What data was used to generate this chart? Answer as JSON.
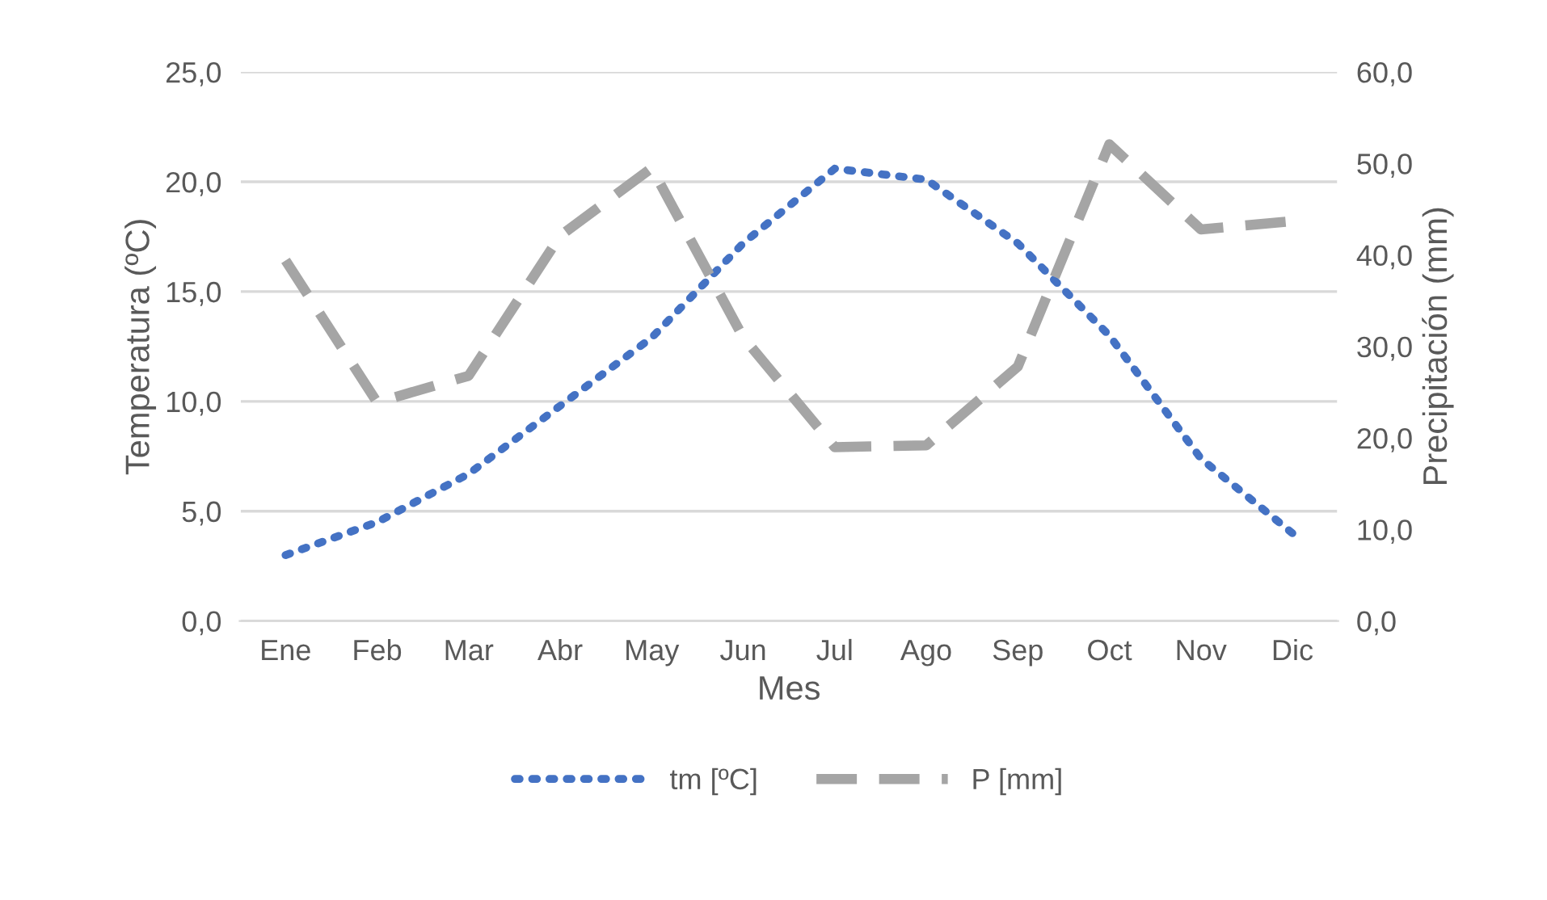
{
  "chart_data": {
    "type": "line",
    "xlabel": "Mes",
    "ylabel": "Temperatura (ºC)",
    "y2label": "Precipitación (mm)",
    "categories": [
      "Ene",
      "Feb",
      "Mar",
      "Abr",
      "May",
      "Jun",
      "Jul",
      "Ago",
      "Sep",
      "Oct",
      "Nov",
      "Dic"
    ],
    "series": [
      {
        "name": "tm [ºC]",
        "color": "#4472c4",
        "line_style": "dotted",
        "values": [
          3.0,
          4.5,
          6.7,
          9.8,
          12.9,
          17.2,
          20.6,
          20.1,
          17.2,
          13.0,
          7.4,
          4.0
        ]
      },
      {
        "name": "P [mm]",
        "color": "#a5a5a5",
        "line_style": "dashed",
        "axis": "y2",
        "values": [
          39.4,
          23.9,
          26.8,
          42.1,
          49.5,
          31.0,
          19.0,
          19.2,
          27.8,
          52.1,
          42.8,
          43.7
        ]
      }
    ],
    "ylim": [
      0,
      25
    ],
    "yticks": [
      {
        "value": 0,
        "label": "0,0"
      },
      {
        "value": 5,
        "label": "5,0"
      },
      {
        "value": 10,
        "label": "10,0"
      },
      {
        "value": 15,
        "label": "15,0"
      },
      {
        "value": 20,
        "label": "20,0"
      },
      {
        "value": 25,
        "label": "25,0"
      }
    ],
    "y2lim": [
      0,
      60
    ],
    "y2ticks": [
      {
        "value": 0,
        "label": "0,0"
      },
      {
        "value": 10,
        "label": "10,0"
      },
      {
        "value": 20,
        "label": "20,0"
      },
      {
        "value": 30,
        "label": "30,0"
      },
      {
        "value": 40,
        "label": "40,0"
      },
      {
        "value": 50,
        "label": "50,0"
      },
      {
        "value": 60,
        "label": "60,0"
      }
    ],
    "grid": "y",
    "legend": "bottom",
    "marker": "none"
  }
}
